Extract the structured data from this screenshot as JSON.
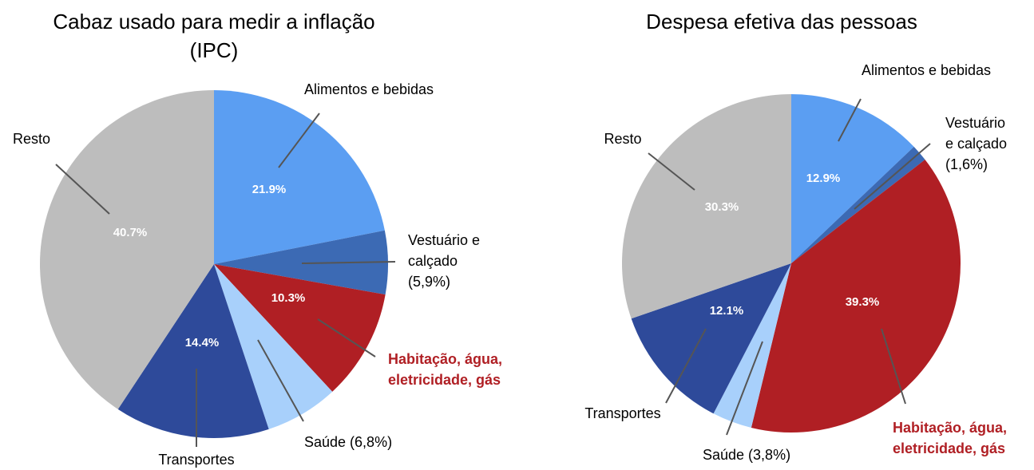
{
  "chart_data": [
    {
      "type": "pie",
      "title_lines": [
        "Cabaz usado para medir a inflação",
        "(IPC)"
      ],
      "slices": [
        {
          "name": "Alimentos e bebidas",
          "value": 21.9,
          "pct_label": "21.9%",
          "label_lines": [
            "Alimentos e bebidas"
          ],
          "color": "#5b9ef2",
          "highlight": false
        },
        {
          "name": "Vestuário e calçado",
          "value": 5.9,
          "pct_label": "",
          "label_lines": [
            "Vestuário e",
            "calçado",
            "(5,9%)"
          ],
          "color": "#3c6ab4",
          "highlight": false
        },
        {
          "name": "Habitação, água, eletricidade, gás",
          "value": 10.3,
          "pct_label": "10.3%",
          "label_lines": [
            "Habitação, água,",
            "eletricidade, gás"
          ],
          "color": "#b01f24",
          "highlight": true
        },
        {
          "name": "Saúde",
          "value": 6.8,
          "pct_label": "",
          "label_lines": [
            "Saúde (6,8%)"
          ],
          "color": "#a8d0fb",
          "highlight": false
        },
        {
          "name": "Transportes",
          "value": 14.4,
          "pct_label": "14.4%",
          "label_lines": [
            "Transportes"
          ],
          "color": "#2e4a9a",
          "highlight": false
        },
        {
          "name": "Resto",
          "value": 40.7,
          "pct_label": "40.7%",
          "label_lines": [
            "Resto"
          ],
          "color": "#bdbdbd",
          "highlight": false
        }
      ]
    },
    {
      "type": "pie",
      "title_lines": [
        "Despesa efetiva das pessoas"
      ],
      "slices": [
        {
          "name": "Alimentos e bebidas",
          "value": 12.9,
          "pct_label": "12.9%",
          "label_lines": [
            "Alimentos e bebidas"
          ],
          "color": "#5b9ef2",
          "highlight": false
        },
        {
          "name": "Vestuário e calçado",
          "value": 1.6,
          "pct_label": "",
          "label_lines": [
            "Vestuário",
            "e calçado",
            "(1,6%)"
          ],
          "color": "#3c6ab4",
          "highlight": false
        },
        {
          "name": "Habitação, água, eletricidade, gás",
          "value": 39.3,
          "pct_label": "39.3%",
          "label_lines": [
            "Habitação, água,",
            "eletricidade, gás"
          ],
          "color": "#b01f24",
          "highlight": true
        },
        {
          "name": "Saúde",
          "value": 3.8,
          "pct_label": "",
          "label_lines": [
            "Saúde (3,8%)"
          ],
          "color": "#a8d0fb",
          "highlight": false
        },
        {
          "name": "Transportes",
          "value": 12.1,
          "pct_label": "12.1%",
          "label_lines": [
            "Transportes"
          ],
          "color": "#2e4a9a",
          "highlight": false
        },
        {
          "name": "Resto",
          "value": 30.3,
          "pct_label": "30.3%",
          "label_lines": [
            "Resto"
          ],
          "color": "#bdbdbd",
          "highlight": false
        }
      ]
    }
  ]
}
